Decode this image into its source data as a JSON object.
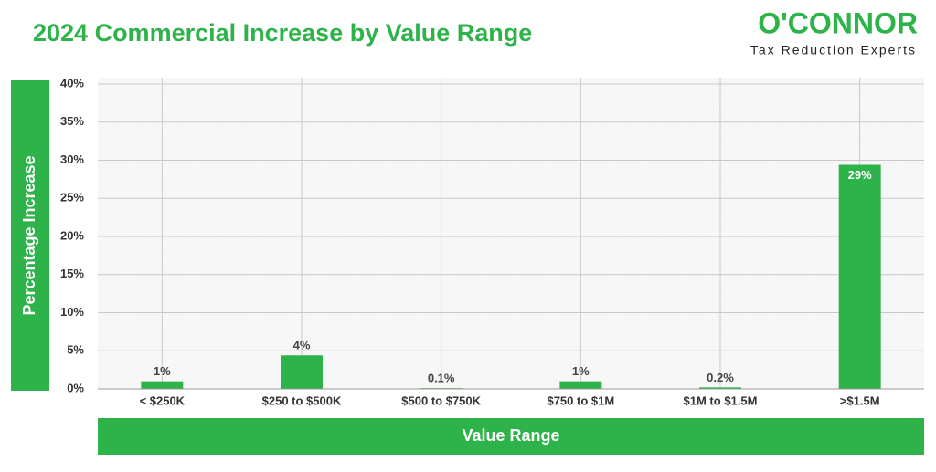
{
  "chart_data": {
    "type": "bar",
    "title": "2024 Commercial Increase by Value Range",
    "x_label": "Value Range",
    "y_label": "Percentage Increase",
    "categories": [
      "< $250K",
      "$250 to $500K",
      "$500 to $750K",
      "$750 to $1M",
      "$1M to $1.5M",
      ">$1.5M"
    ],
    "values": [
      1,
      4.4,
      0.1,
      1,
      0.2,
      29.4
    ],
    "value_labels": [
      "1%",
      "4%",
      "0.1%",
      "1%",
      "0.2%",
      "29%"
    ],
    "color": "#2db34a",
    "ylim": [
      0,
      40
    ],
    "yticks": [
      {
        "value": 0,
        "label": "0%"
      },
      {
        "value": 5,
        "label": "5%"
      },
      {
        "value": 10,
        "label": "10%"
      },
      {
        "value": 15,
        "label": "15%"
      },
      {
        "value": 20,
        "label": "20%"
      },
      {
        "value": 25,
        "label": "25%"
      },
      {
        "value": 30,
        "label": "30%"
      },
      {
        "value": 35,
        "label": "35%"
      },
      {
        "value": 40,
        "label": "40%"
      }
    ],
    "grid": true
  },
  "logo": {
    "name": "O'CONNOR",
    "tagline": "Tax Reduction Experts"
  }
}
